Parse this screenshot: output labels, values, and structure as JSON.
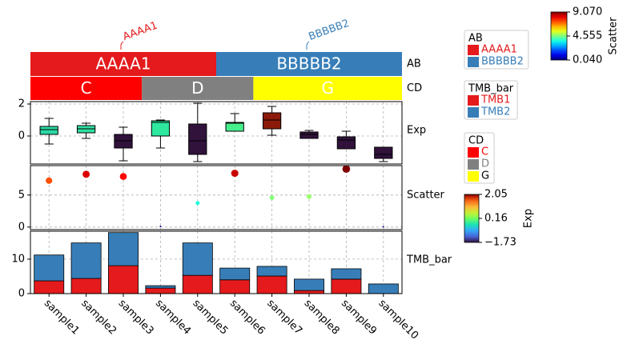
{
  "samples": [
    "sample1",
    "sample2",
    "sample3",
    "sample4",
    "sample5",
    "sample6",
    "sample7",
    "sample8",
    "sample9",
    "sample10"
  ],
  "chart_data": [
    {
      "type": "annotation",
      "name": "AB",
      "values": [
        "AAAA1",
        "AAAA1",
        "AAAA1",
        "AAAA1",
        "AAAA1",
        "BBBBB2",
        "BBBBB2",
        "BBBBB2",
        "BBBBB2",
        "BBBBB2"
      ]
    },
    {
      "type": "annotation",
      "name": "CD",
      "values": [
        "C",
        "C",
        "C",
        "D",
        "D",
        "D",
        "G",
        "G",
        "G",
        "G"
      ]
    },
    {
      "type": "box",
      "name": "Exp",
      "ylim": [
        -1.75,
        2.15
      ],
      "yticks": [
        0,
        2
      ],
      "grid": true,
      "whisker_low": [
        -0.5,
        -0.15,
        -1.55,
        -0.75,
        -1.6,
        0.3,
        0.05,
        -0.15,
        -0.8,
        -1.6
      ],
      "q1": [
        0.1,
        0.2,
        -0.75,
        0,
        -1.15,
        0.3,
        0.45,
        -0.15,
        -0.8,
        -1.4
      ],
      "median": [
        0.4,
        0.45,
        -0.3,
        0.85,
        -0.3,
        0.8,
        1.0,
        0.1,
        -0.25,
        -1.15
      ],
      "q3": [
        0.6,
        0.65,
        0.1,
        0.95,
        0.75,
        0.85,
        1.45,
        0.25,
        -0.05,
        -0.7
      ],
      "whisker_high": [
        1.1,
        0.8,
        0.55,
        1.0,
        2.05,
        1.4,
        1.85,
        0.35,
        0.3,
        -0.7
      ],
      "colors": [
        "#2ad9a3",
        "#2fdfa0",
        "#30123b",
        "#2ee89e",
        "#30123b",
        "#46f08c",
        "#8b1a0a",
        "#30123b",
        "#30123b",
        "#30123b"
      ]
    },
    {
      "type": "scatter",
      "name": "Scatter",
      "ylim": [
        -0.4,
        9.6
      ],
      "yticks": [
        0,
        5
      ],
      "grid": true,
      "values": [
        7.25,
        8.25,
        7.9,
        0.1,
        3.75,
        8.4,
        4.6,
        4.75,
        9.07,
        0.04
      ]
    },
    {
      "type": "bar",
      "name": "TMB_bar",
      "stacked": true,
      "ylim": [
        0,
        18.1
      ],
      "yticks": [
        0,
        10
      ],
      "grid": true,
      "series": [
        {
          "name": "TMB1",
          "color": "#e41a1c",
          "values": [
            3.7,
            4.4,
            8.1,
            1.6,
            5.3,
            4.0,
            5.1,
            0.9,
            4.2,
            0
          ]
        },
        {
          "name": "TMB2",
          "color": "#377eb8",
          "values": [
            7.5,
            10.3,
            9.6,
            0.7,
            9.4,
            3.4,
            2.8,
            3.3,
            3.0,
            2.8
          ]
        }
      ]
    }
  ],
  "legends": [
    {
      "title": "AB",
      "items": [
        {
          "label": "AAAA1",
          "color": "#e41a1c"
        },
        {
          "label": "BBBBB2",
          "color": "#377eb8"
        }
      ]
    },
    {
      "title": "CD",
      "items": [
        {
          "label": "C",
          "color": "#ff0000"
        },
        {
          "label": "D",
          "color": "#808080"
        },
        {
          "label": "G",
          "color": "#ffff00"
        }
      ]
    }
  ],
  "colorbars": [
    {
      "label": "Scatter",
      "colormap": "jet",
      "lim": [
        0.04,
        9.07
      ],
      "ticks": [
        {
          "value": 9.07,
          "label": "9.070"
        },
        {
          "value": 4.555,
          "label": "4.555"
        },
        {
          "value": 0.04,
          "label": "0.040"
        }
      ]
    },
    {
      "label": "Exp",
      "colormap": "turbo",
      "lim": [
        -1.73,
        2.05
      ],
      "ticks": [
        2.05,
        0.16,
        {
          "value": -1.73,
          "label": "−1.73"
        }
      ]
    }
  ]
}
